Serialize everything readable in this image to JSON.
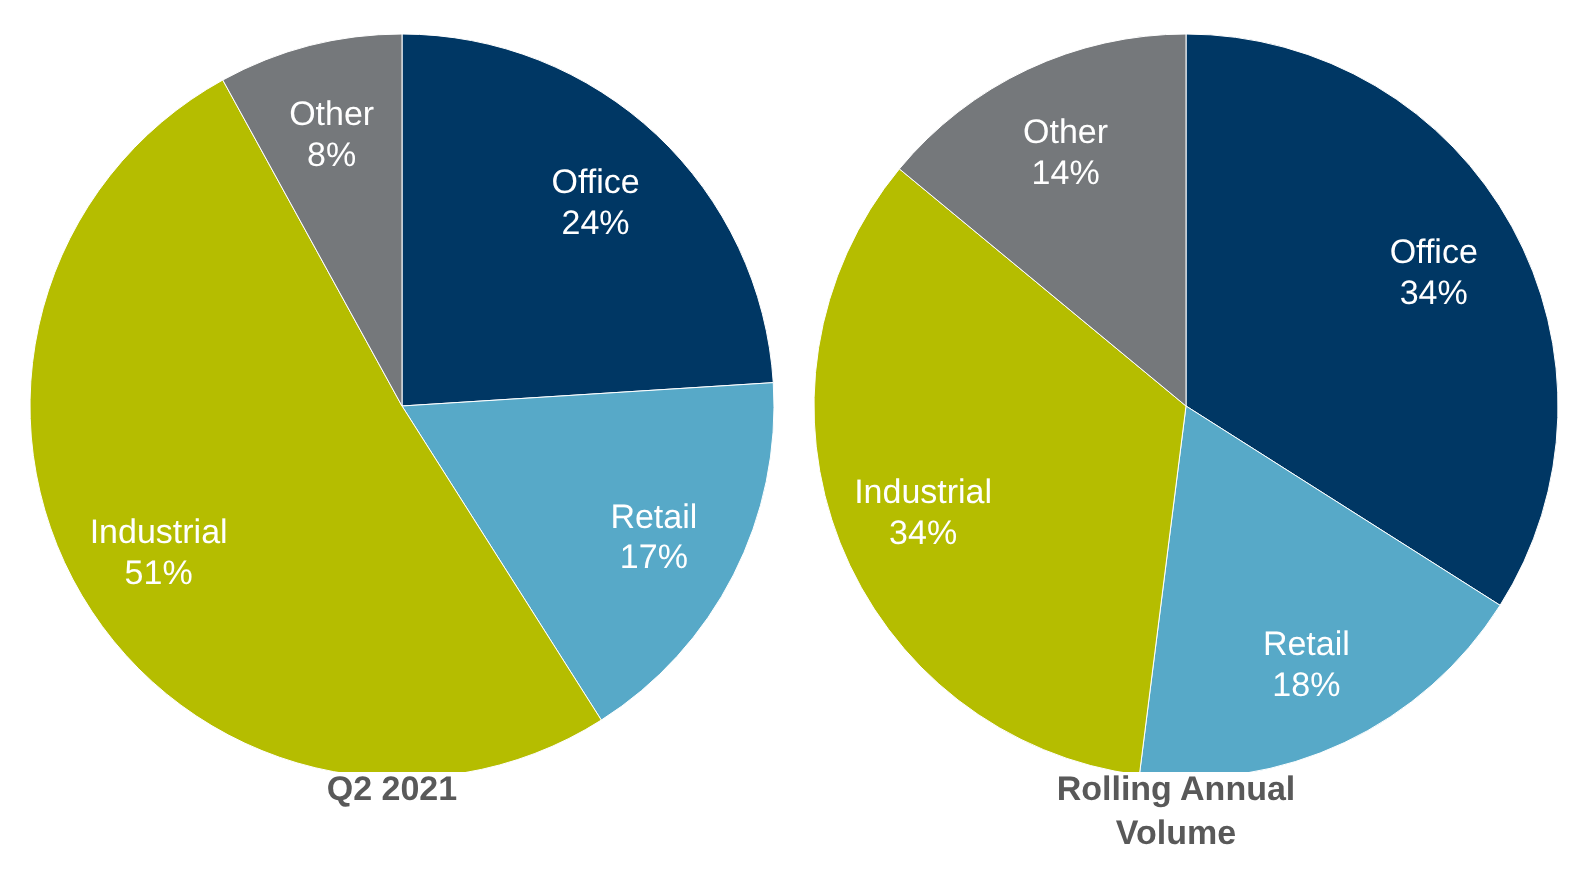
{
  "chart_data": [
    {
      "type": "pie",
      "title": "Q2 2021",
      "categories": [
        "Office",
        "Retail",
        "Industrial",
        "Other"
      ],
      "values": [
        24,
        17,
        51,
        8
      ],
      "colors": [
        "#003764",
        "#57a9c8",
        "#b5bd00",
        "#75787b"
      ],
      "value_labels": [
        "24%",
        "17%",
        "51%",
        "8%"
      ],
      "legend": false
    },
    {
      "type": "pie",
      "title": "Rolling Annual Volume",
      "categories": [
        "Office",
        "Retail",
        "Industrial",
        "Other"
      ],
      "values": [
        34,
        18,
        34,
        14
      ],
      "colors": [
        "#003764",
        "#57a9c8",
        "#b5bd00",
        "#75787b"
      ],
      "value_labels": [
        "34%",
        "18%",
        "34%",
        "14%"
      ],
      "legend": false
    }
  ]
}
